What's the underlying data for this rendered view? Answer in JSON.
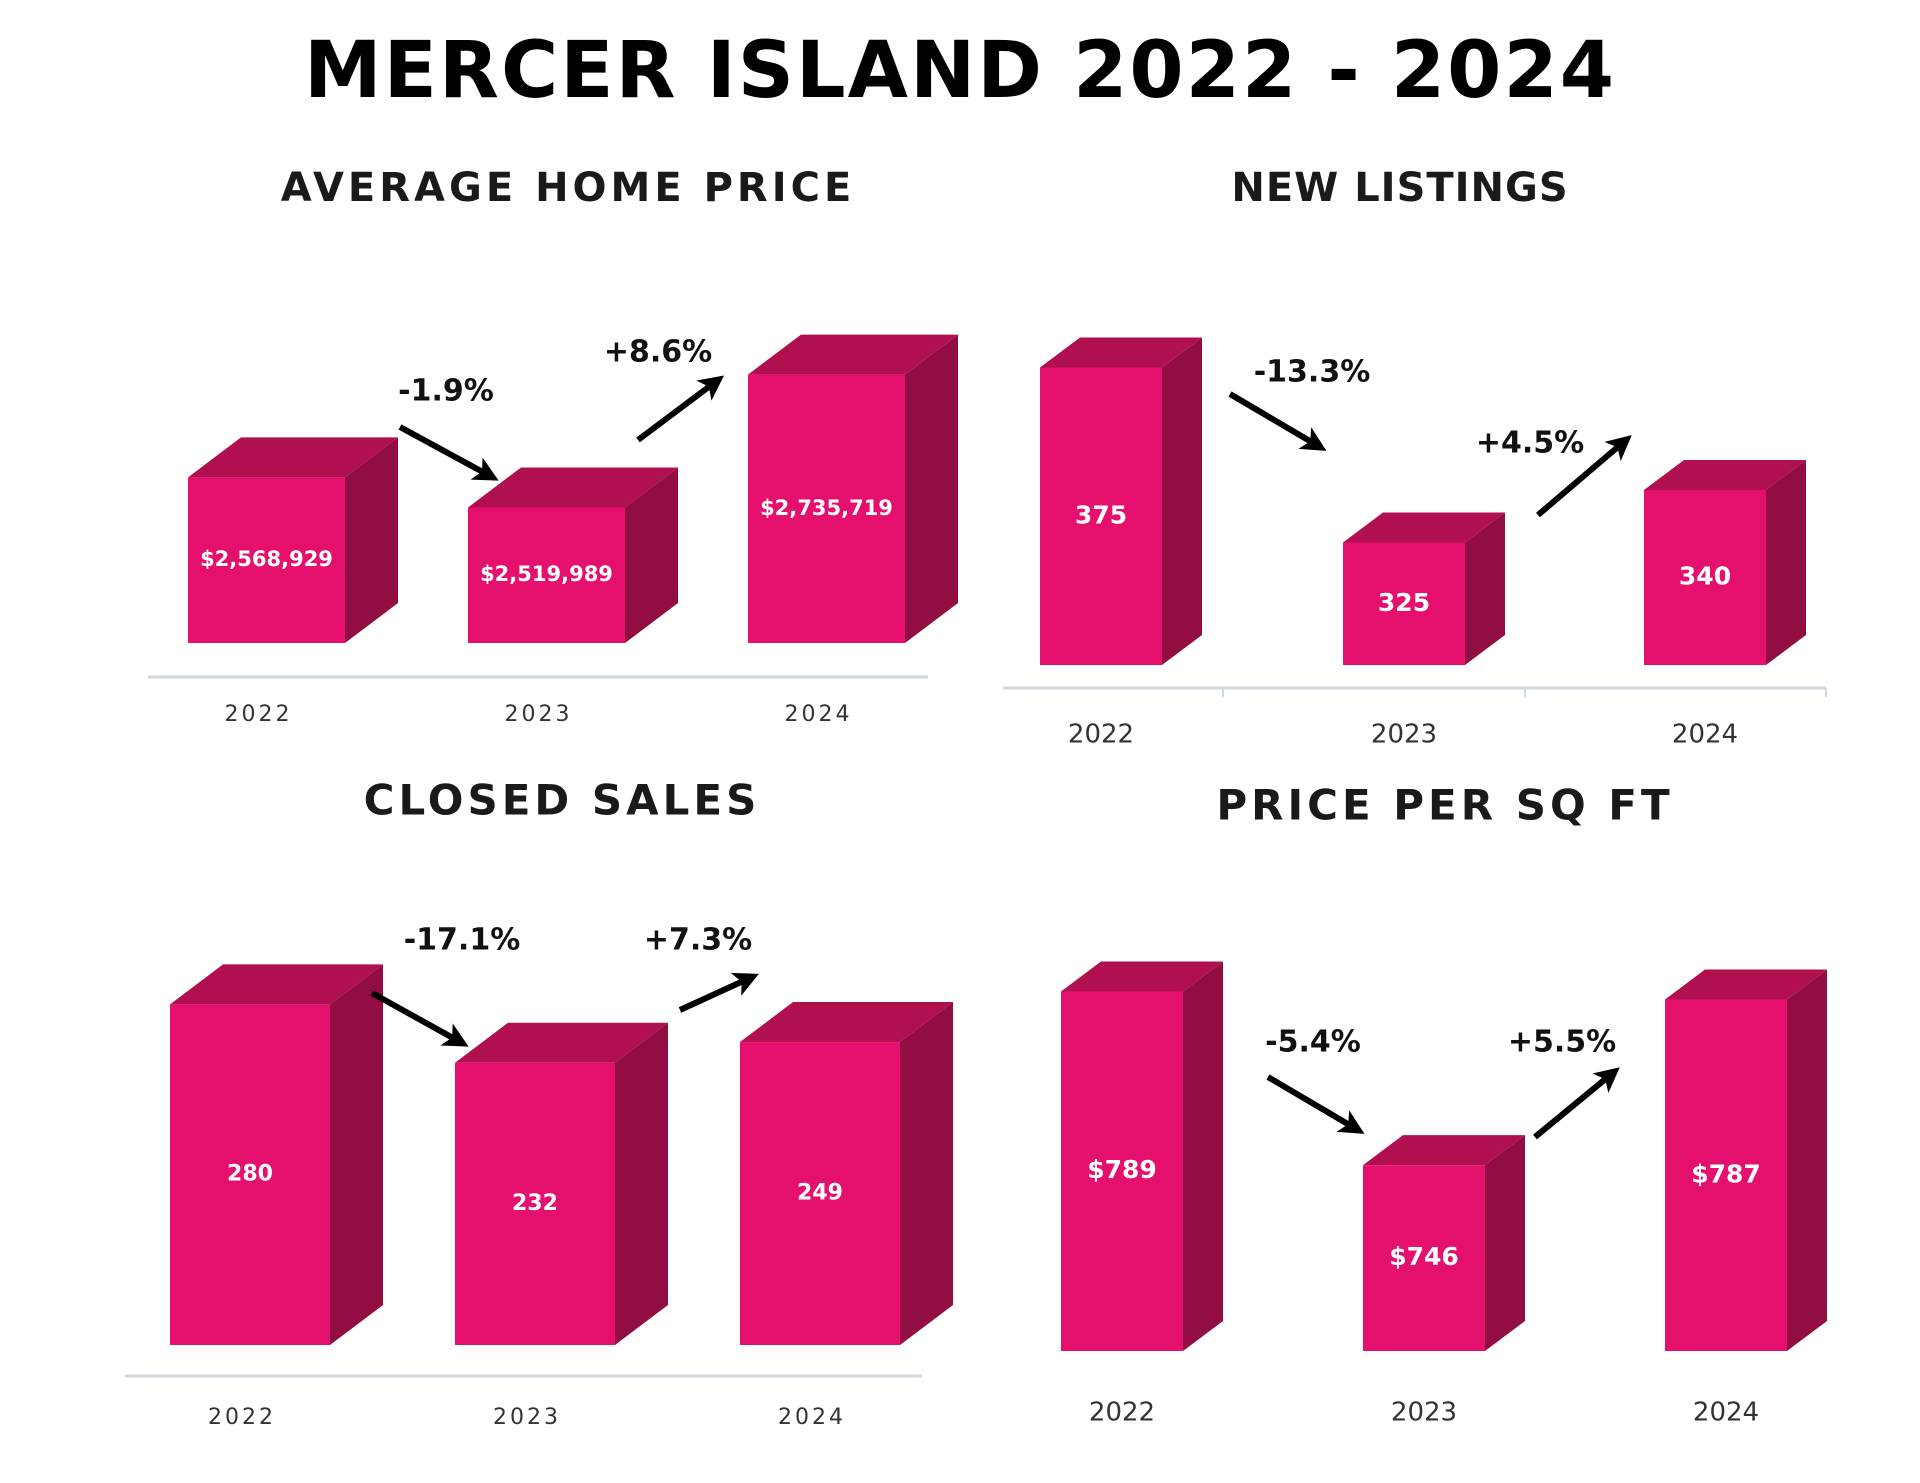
{
  "page_title": "MERCER ISLAND 2022 - 2024",
  "colors": {
    "front": "#e5106e",
    "top": "#b0104f",
    "side": "#920d42",
    "axis": "#cfd8e3",
    "arrow": "#000000"
  },
  "chart_data": [
    {
      "type": "bar",
      "title": "AVERAGE HOME PRICE",
      "categories": [
        "2022",
        "2023",
        "2024"
      ],
      "values": [
        2568929,
        2519989,
        2735719
      ],
      "value_labels": [
        "$2,568,929",
        "$2,519,989",
        "$2,735,719"
      ],
      "changes": [
        "-1.9%",
        "+8.6%"
      ],
      "ylim": [
        2300000,
        2800000
      ]
    },
    {
      "type": "bar",
      "title": "NEW LISTINGS",
      "categories": [
        "2022",
        "2023",
        "2024"
      ],
      "values": [
        375,
        325,
        340
      ],
      "value_labels": [
        "375",
        "325",
        "340"
      ],
      "changes": [
        "-13.3%",
        "+4.5%"
      ],
      "ylim": [
        290,
        400
      ]
    },
    {
      "type": "bar",
      "title": "CLOSED SALES",
      "categories": [
        "2022",
        "2023",
        "2024"
      ],
      "values": [
        280,
        232,
        249
      ],
      "value_labels": [
        "280",
        "232",
        "249"
      ],
      "changes": [
        "-17.1%",
        "+7.3%"
      ],
      "ylim": [
        0,
        300
      ]
    },
    {
      "type": "bar",
      "title": "PRICE PER SQ FT",
      "categories": [
        "2022",
        "2023",
        "2024"
      ],
      "values": [
        789,
        746,
        787
      ],
      "value_labels": [
        "$789",
        "$746",
        "$787"
      ],
      "changes": [
        "-5.4%",
        "+5.5%"
      ],
      "ylim": [
        700,
        800
      ]
    }
  ]
}
